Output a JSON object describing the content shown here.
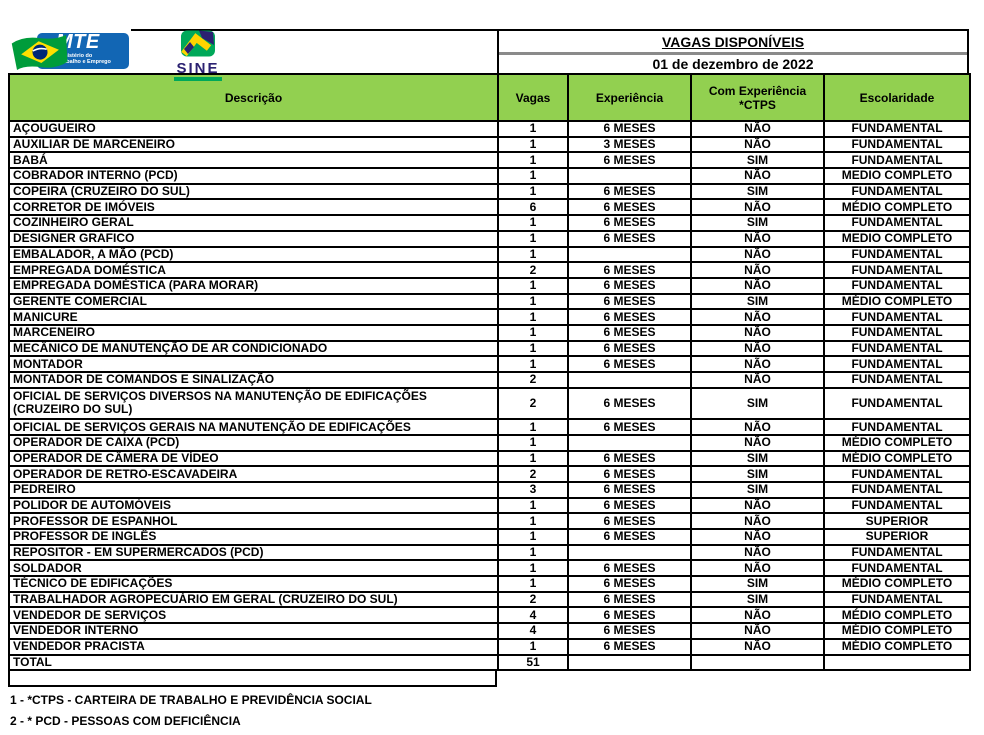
{
  "header": {
    "title": "VAGAS DISPONÍVEIS",
    "date": "01 de dezembro de 2022",
    "logos": {
      "mte_word": "MTE",
      "mte_sub": "Ministério do\nTrabalho e Emprego",
      "sine_word": "SINE"
    }
  },
  "table": {
    "columns": [
      "Descrição",
      "Vagas",
      "Experiência",
      "Com Experiência\n*CTPS",
      "Escolaridade"
    ],
    "rows": [
      {
        "desc": "AÇOUGUEIRO",
        "vagas": "1",
        "exp": "6 MESES",
        "ctps": "NÃO",
        "esc": "FUNDAMENTAL"
      },
      {
        "desc": "AUXILIAR DE MARCENEIRO",
        "vagas": "1",
        "exp": "3 MESES",
        "ctps": "NÃO",
        "esc": "FUNDAMENTAL"
      },
      {
        "desc": "BABÁ",
        "vagas": "1",
        "exp": "6 MESES",
        "ctps": "SIM",
        "esc": "FUNDAMENTAL"
      },
      {
        "desc": "COBRADOR INTERNO (PCD)",
        "vagas": "1",
        "exp": "",
        "ctps": "NÃO",
        "esc": "MEDIO COMPLETO"
      },
      {
        "desc": "COPEIRA (CRUZEIRO DO SUL)",
        "vagas": "1",
        "exp": "6 MESES",
        "ctps": "SIM",
        "esc": "FUNDAMENTAL"
      },
      {
        "desc": "CORRETOR DE IMÓVEIS",
        "vagas": "6",
        "exp": "6 MESES",
        "ctps": "NÃO",
        "esc": "MÉDIO COMPLETO"
      },
      {
        "desc": "COZINHEIRO GERAL",
        "vagas": "1",
        "exp": "6 MESES",
        "ctps": "SIM",
        "esc": "FUNDAMENTAL"
      },
      {
        "desc": "DESIGNER GRAFICO",
        "vagas": "1",
        "exp": "6 MESES",
        "ctps": "NÃO",
        "esc": "MEDIO COMPLETO"
      },
      {
        "desc": "EMBALADOR, A MÃO (PCD)",
        "vagas": "1",
        "exp": "",
        "ctps": "NÃO",
        "esc": "FUNDAMENTAL"
      },
      {
        "desc": "EMPREGADA DOMÉSTICA",
        "vagas": "2",
        "exp": "6 MESES",
        "ctps": "NÃO",
        "esc": "FUNDAMENTAL"
      },
      {
        "desc": "EMPREGADA DOMÉSTICA (PARA MORAR)",
        "vagas": "1",
        "exp": "6 MESES",
        "ctps": "NÃO",
        "esc": "FUNDAMENTAL"
      },
      {
        "desc": "GERENTE COMERCIAL",
        "vagas": "1",
        "exp": "6 MESES",
        "ctps": "SIM",
        "esc": "MÉDIO COMPLETO"
      },
      {
        "desc": "MANICURE",
        "vagas": "1",
        "exp": "6 MESES",
        "ctps": "NÃO",
        "esc": "FUNDAMENTAL"
      },
      {
        "desc": "MARCENEIRO",
        "vagas": "1",
        "exp": "6 MESES",
        "ctps": "NÃO",
        "esc": "FUNDAMENTAL"
      },
      {
        "desc": "MECÂNICO DE MANUTENÇÃO DE AR CONDICIONADO",
        "vagas": "1",
        "exp": "6 MESES",
        "ctps": "NÃO",
        "esc": "FUNDAMENTAL"
      },
      {
        "desc": "MONTADOR",
        "vagas": "1",
        "exp": "6 MESES",
        "ctps": "NÃO",
        "esc": "FUNDAMENTAL"
      },
      {
        "desc": "MONTADOR DE COMANDOS E SINALIZAÇÃO",
        "vagas": "2",
        "exp": "",
        "ctps": "NÃO",
        "esc": "FUNDAMENTAL"
      },
      {
        "desc": "OFICIAL DE SERVIÇOS  DIVERSOS NA MANUTENÇÃO DE EDIFICAÇÕES\n(CRUZEIRO DO SUL)",
        "vagas": "2",
        "exp": "6 MESES",
        "ctps": "SIM",
        "esc": "FUNDAMENTAL"
      },
      {
        "desc": "OFICIAL DE SERVIÇOS GERAIS NA MANUTENÇÃO DE EDIFICAÇÕES",
        "vagas": "1",
        "exp": "6 MESES",
        "ctps": "NÃO",
        "esc": "FUNDAMENTAL"
      },
      {
        "desc": "OPERADOR DE CAIXA (PCD)",
        "vagas": "1",
        "exp": "",
        "ctps": "NÃO",
        "esc": "MÉDIO COMPLETO"
      },
      {
        "desc": "OPERADOR DE CÂMERA DE VÍDEO",
        "vagas": "1",
        "exp": "6 MESES",
        "ctps": "SIM",
        "esc": "MÉDIO COMPLETO"
      },
      {
        "desc": "OPERADOR DE RETRO-ESCAVADEIRA",
        "vagas": "2",
        "exp": "6 MESES",
        "ctps": "SIM",
        "esc": "FUNDAMENTAL"
      },
      {
        "desc": "PEDREIRO",
        "vagas": "3",
        "exp": "6 MESES",
        "ctps": "SIM",
        "esc": "FUNDAMENTAL"
      },
      {
        "desc": "POLIDOR DE AUTOMÓVEIS",
        "vagas": "1",
        "exp": "6 MESES",
        "ctps": "NÃO",
        "esc": "FUNDAMENTAL"
      },
      {
        "desc": "PROFESSOR DE ESPANHOL",
        "vagas": "1",
        "exp": "6 MESES",
        "ctps": "NÃO",
        "esc": "SUPERIOR"
      },
      {
        "desc": "PROFESSOR DE INGLÊS",
        "vagas": "1",
        "exp": "6 MESES",
        "ctps": "NÃO",
        "esc": "SUPERIOR"
      },
      {
        "desc": "REPOSITOR -  EM SUPERMERCADOS (PCD)",
        "vagas": "1",
        "exp": "",
        "ctps": "NÃO",
        "esc": "FUNDAMENTAL"
      },
      {
        "desc": "SOLDADOR",
        "vagas": "1",
        "exp": "6 MESES",
        "ctps": "NÃO",
        "esc": "FUNDAMENTAL"
      },
      {
        "desc": "TÉCNICO DE EDIFICAÇÕES",
        "vagas": "1",
        "exp": "6 MESES",
        "ctps": "SIM",
        "esc": "MÉDIO COMPLETO"
      },
      {
        "desc": "TRABALHADOR AGROPECUÁRIO EM GERAL (CRUZEIRO DO SUL)",
        "vagas": "2",
        "exp": "6 MESES",
        "ctps": "SIM",
        "esc": "FUNDAMENTAL"
      },
      {
        "desc": "VENDEDOR DE SERVIÇOS",
        "vagas": "4",
        "exp": "6 MESES",
        "ctps": "NÃO",
        "esc": "MÉDIO COMPLETO"
      },
      {
        "desc": "VENDEDOR INTERNO",
        "vagas": "4",
        "exp": "6 MESES",
        "ctps": "NÃO",
        "esc": "MÉDIO COMPLETO"
      },
      {
        "desc": "VENDEDOR PRACISTA",
        "vagas": "1",
        "exp": "6 MESES",
        "ctps": "NÃO",
        "esc": "MÉDIO COMPLETO"
      }
    ],
    "total": {
      "label": "TOTAL",
      "vagas": "51"
    }
  },
  "footnotes": [
    "1 - *CTPS - CARTEIRA DE TRABALHO E PREVIDÊNCIA SOCIAL",
    "2 - * PCD - PESSOAS COM DEFICIÊNCIA"
  ],
  "colors": {
    "header_green": "#92D050",
    "border_black": "#000000",
    "mte_blue": "#1266B4",
    "sine_navy": "#2B2171",
    "flag_green": "#00A859",
    "flag_yellow": "#FFD400",
    "brazil_green": "#009C3B",
    "brazil_yellow": "#FFDF00",
    "brazil_blue": "#002776"
  }
}
